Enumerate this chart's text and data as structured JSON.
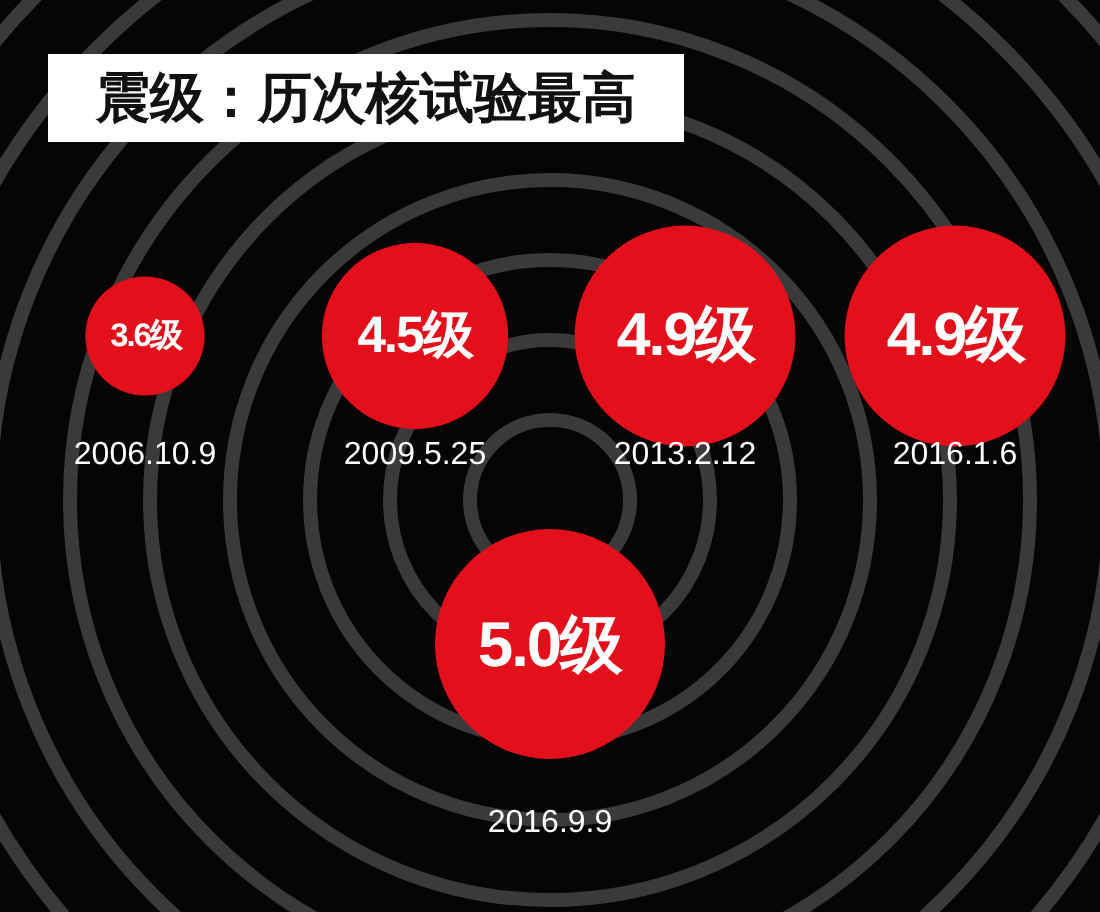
{
  "chart_data": {
    "type": "other",
    "title": "震级：历次核试验最高",
    "categories": [
      "2006.10.9",
      "2009.5.25",
      "2013.2.12",
      "2016.1.6",
      "2016.9.9"
    ],
    "values": [
      3.6,
      4.5,
      4.9,
      4.9,
      5.0
    ],
    "value_labels": [
      "3.6级",
      "4.5级",
      "4.9级",
      "4.9级",
      "5.0级"
    ],
    "colors": [
      "#e3101c",
      "#e3101c",
      "#e3101c",
      "#e3101c",
      "#e3101c"
    ]
  }
}
